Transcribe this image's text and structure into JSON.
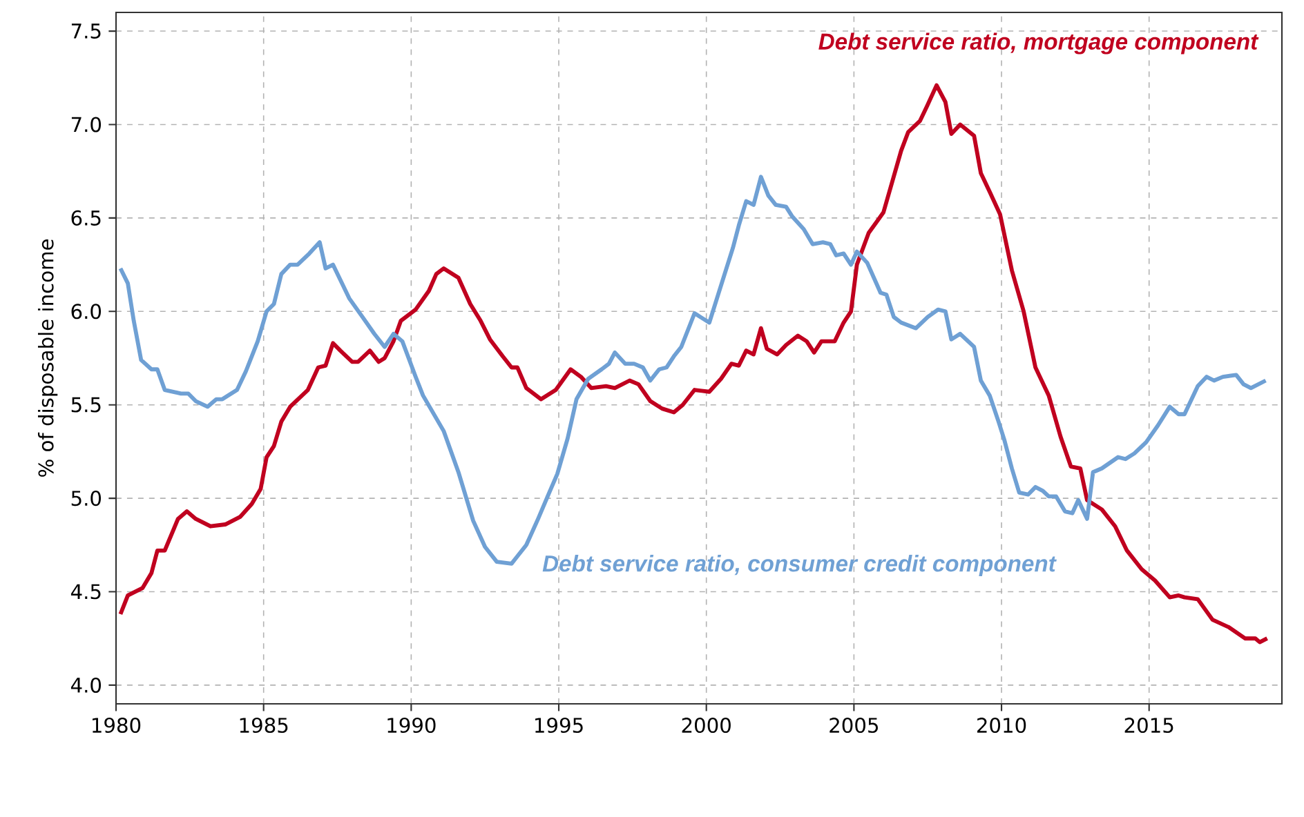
{
  "chart_data": {
    "type": "line",
    "ylabel": "% of disposable income",
    "xlim": [
      1980,
      2019.5
    ],
    "ylim": [
      3.9,
      7.6
    ],
    "xticks": [
      1980,
      1985,
      1990,
      1995,
      2000,
      2005,
      2010,
      2015
    ],
    "yticks": [
      {
        "value": 4,
        "label": "4.0"
      },
      {
        "value": 4.5,
        "label": "4.5"
      },
      {
        "value": 5,
        "label": "5.0"
      },
      {
        "value": 5.5,
        "label": "5.5"
      },
      {
        "value": 6,
        "label": "6.0"
      },
      {
        "value": 6.5,
        "label": "6.5"
      },
      {
        "value": 7,
        "label": "7.0"
      },
      {
        "value": 7.5,
        "label": "7.5"
      }
    ],
    "grid": true,
    "legend": false,
    "marker": "none",
    "line_style": "solid",
    "series": [
      {
        "name": "Debt service ratio, mortgage component",
        "color": "#c0001f",
        "x": [
          1980.15,
          1980.4,
          1980.9,
          1981.2,
          1981.4,
          1981.65,
          1982.1,
          1982.4,
          1982.7,
          1983.2,
          1983.7,
          1984.2,
          1984.6,
          1984.9,
          1985.1,
          1985.35,
          1985.6,
          1985.9,
          1986.5,
          1986.85,
          1987.1,
          1987.35,
          1987.6,
          1988.0,
          1988.2,
          1988.6,
          1988.9,
          1989.1,
          1989.4,
          1989.65,
          1990.15,
          1990.6,
          1990.85,
          1991.1,
          1991.6,
          1992.0,
          1992.35,
          1992.67,
          1993.1,
          1993.4,
          1993.6,
          1993.9,
          1994.4,
          1994.9,
          1995.4,
          1995.75,
          1996.1,
          1996.6,
          1996.9,
          1997.4,
          1997.7,
          1998.1,
          1998.5,
          1998.9,
          1999.2,
          1999.6,
          2000.1,
          2000.5,
          2000.85,
          2001.1,
          2001.35,
          2001.6,
          2001.85,
          2002.05,
          2002.4,
          2002.7,
          2003.1,
          2003.4,
          2003.65,
          2003.9,
          2004.35,
          2004.65,
          2004.9,
          2005.1,
          2005.5,
          2006.0,
          2006.6,
          2006.84,
          2007.24,
          2007.48,
          2007.8,
          2008.1,
          2008.3,
          2008.6,
          2009.07,
          2009.3,
          2009.6,
          2009.95,
          2010.35,
          2010.75,
          2011.15,
          2011.6,
          2012.0,
          2012.35,
          2012.67,
          2012.9,
          2013.4,
          2013.85,
          2014.25,
          2014.75,
          2015.2,
          2015.7,
          2016.0,
          2016.2,
          2016.65,
          2017.15,
          2017.7,
          2018.25,
          2018.6,
          2018.75,
          2019.0
        ],
        "values": [
          4.38,
          4.48,
          4.52,
          4.6,
          4.72,
          4.72,
          4.89,
          4.93,
          4.89,
          4.85,
          4.86,
          4.9,
          4.97,
          5.05,
          5.22,
          5.28,
          5.41,
          5.49,
          5.58,
          5.7,
          5.71,
          5.83,
          5.79,
          5.73,
          5.73,
          5.79,
          5.73,
          5.75,
          5.84,
          5.95,
          6.01,
          6.11,
          6.2,
          6.23,
          6.18,
          6.04,
          5.95,
          5.85,
          5.76,
          5.7,
          5.7,
          5.59,
          5.53,
          5.58,
          5.69,
          5.65,
          5.59,
          5.6,
          5.59,
          5.63,
          5.61,
          5.52,
          5.48,
          5.46,
          5.5,
          5.58,
          5.57,
          5.64,
          5.72,
          5.71,
          5.79,
          5.77,
          5.91,
          5.8,
          5.77,
          5.82,
          5.87,
          5.84,
          5.78,
          5.84,
          5.84,
          5.94,
          6.0,
          6.25,
          6.42,
          6.53,
          6.86,
          6.96,
          7.02,
          7.1,
          7.21,
          7.12,
          6.95,
          7.0,
          6.94,
          6.74,
          6.64,
          6.52,
          6.22,
          6.0,
          5.7,
          5.55,
          5.33,
          5.17,
          5.16,
          4.99,
          4.94,
          4.85,
          4.72,
          4.62,
          4.56,
          4.47,
          4.48,
          4.47,
          4.46,
          4.35,
          4.31,
          4.25,
          4.25,
          4.23,
          4.25
        ]
      },
      {
        "name": "Debt service ratio, consumer credit component",
        "color": "#6fa0d4",
        "x": [
          1980.15,
          1980.4,
          1980.6,
          1980.85,
          1981.2,
          1981.4,
          1981.65,
          1982.2,
          1982.45,
          1982.7,
          1983.1,
          1983.4,
          1983.6,
          1984.1,
          1984.4,
          1984.8,
          1985.1,
          1985.35,
          1985.6,
          1985.9,
          1986.15,
          1986.55,
          1986.9,
          1987.1,
          1987.35,
          1987.9,
          1988.35,
          1988.75,
          1989.1,
          1989.4,
          1989.7,
          1990.15,
          1990.4,
          1991.1,
          1991.6,
          1992.1,
          1992.5,
          1992.9,
          1993.4,
          1993.6,
          1993.9,
          1994.3,
          1994.65,
          1994.95,
          1995.3,
          1995.6,
          1996.0,
          1996.45,
          1996.7,
          1996.9,
          1997.25,
          1997.55,
          1997.85,
          1998.1,
          1998.4,
          1998.65,
          1998.9,
          1999.15,
          1999.6,
          2000.1,
          2000.4,
          2000.9,
          2001.1,
          2001.35,
          2001.6,
          2001.85,
          2002.1,
          2002.35,
          2002.7,
          2002.9,
          2003.3,
          2003.6,
          2003.95,
          2004.2,
          2004.4,
          2004.65,
          2004.9,
          2005.1,
          2005.45,
          2005.9,
          2006.1,
          2006.35,
          2006.6,
          2007.1,
          2007.5,
          2007.85,
          2008.1,
          2008.3,
          2008.6,
          2009.07,
          2009.3,
          2009.6,
          2009.9,
          2010.1,
          2010.35,
          2010.6,
          2010.9,
          2011.15,
          2011.4,
          2011.6,
          2011.85,
          2012.15,
          2012.4,
          2012.6,
          2012.9,
          2013.1,
          2013.4,
          2013.95,
          2014.2,
          2014.5,
          2014.9,
          2015.3,
          2015.7,
          2016.0,
          2016.2,
          2016.65,
          2016.95,
          2017.2,
          2017.5,
          2017.95,
          2018.2,
          2018.45,
          2018.95
        ],
        "values": [
          6.23,
          6.15,
          5.95,
          5.74,
          5.69,
          5.69,
          5.58,
          5.56,
          5.56,
          5.52,
          5.49,
          5.53,
          5.53,
          5.58,
          5.68,
          5.84,
          6.0,
          6.04,
          6.2,
          6.25,
          6.25,
          6.31,
          6.37,
          6.23,
          6.25,
          6.07,
          5.97,
          5.88,
          5.81,
          5.88,
          5.84,
          5.65,
          5.55,
          5.36,
          5.14,
          4.88,
          4.74,
          4.66,
          4.65,
          4.69,
          4.75,
          4.89,
          5.02,
          5.13,
          5.32,
          5.53,
          5.64,
          5.69,
          5.72,
          5.78,
          5.72,
          5.72,
          5.7,
          5.63,
          5.69,
          5.7,
          5.76,
          5.81,
          5.99,
          5.94,
          6.09,
          6.34,
          6.46,
          6.59,
          6.57,
          6.72,
          6.62,
          6.57,
          6.56,
          6.51,
          6.44,
          6.36,
          6.37,
          6.36,
          6.3,
          6.31,
          6.25,
          6.32,
          6.26,
          6.1,
          6.09,
          5.97,
          5.94,
          5.91,
          5.97,
          6.01,
          6.0,
          5.85,
          5.88,
          5.81,
          5.63,
          5.55,
          5.41,
          5.31,
          5.16,
          5.03,
          5.02,
          5.06,
          5.04,
          5.01,
          5.01,
          4.93,
          4.92,
          4.99,
          4.89,
          5.14,
          5.16,
          5.22,
          5.21,
          5.24,
          5.3,
          5.39,
          5.49,
          5.45,
          5.45,
          5.6,
          5.65,
          5.63,
          5.65,
          5.66,
          5.61,
          5.59,
          5.63
        ]
      }
    ]
  }
}
